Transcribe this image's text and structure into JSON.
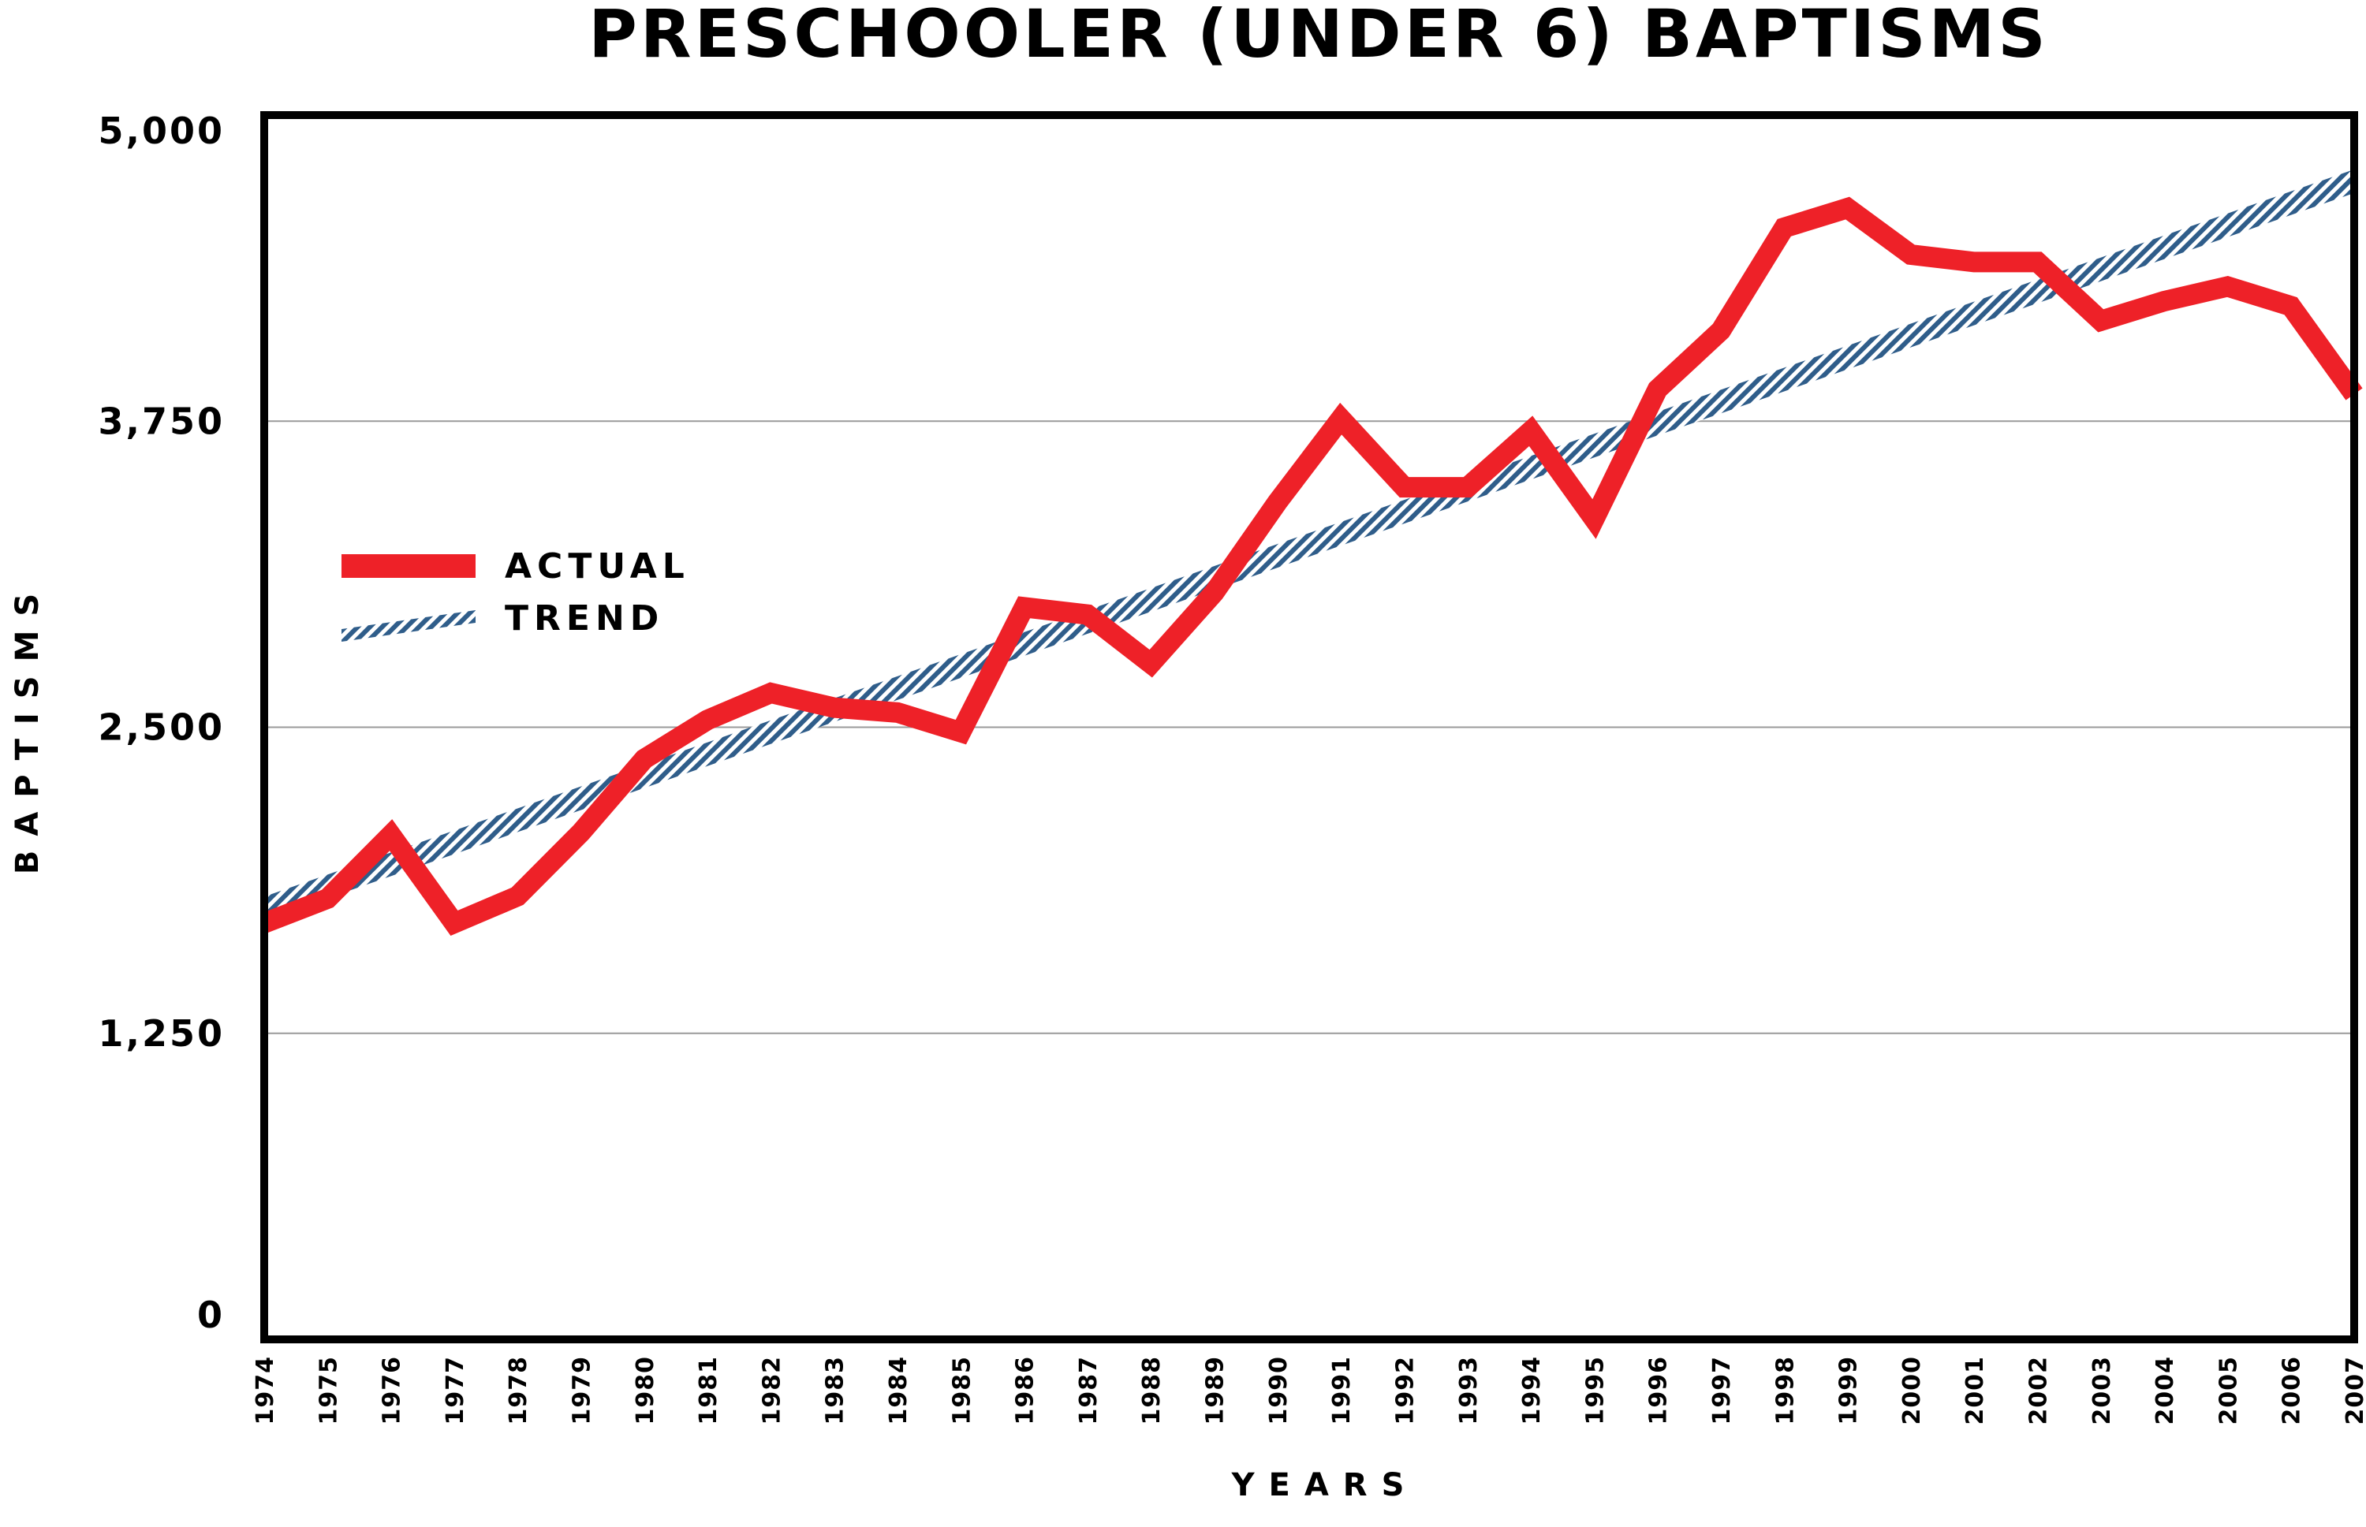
{
  "chart_data": {
    "type": "line",
    "title": "PRESCHOOLER (UNDER 6) BAPTISMS",
    "xlabel": "YEARS",
    "ylabel": "BAPTISMS",
    "ylim": [
      0,
      5000
    ],
    "yticks": [
      "0",
      "1,250",
      "2,500",
      "3,750",
      "5,000"
    ],
    "ytick_values": [
      0,
      1250,
      2500,
      3750,
      5000
    ],
    "grid": true,
    "legend_position": "left",
    "x": [
      "1974",
      "1975",
      "1976",
      "1977",
      "1978",
      "1979",
      "1980",
      "1981",
      "1982",
      "1983",
      "1984",
      "1985",
      "1986",
      "1987",
      "1988",
      "1989",
      "1990",
      "1991",
      "1992",
      "1993",
      "1994",
      "1995",
      "1996",
      "1997",
      "1998",
      "1999",
      "2000",
      "2001",
      "2002",
      "2003",
      "2004",
      "2005",
      "2006",
      "2007"
    ],
    "series": [
      {
        "name": "ACTUAL",
        "color": "#ee2128",
        "values": [
          1700,
          1800,
          2060,
          1700,
          1810,
          2070,
          2370,
          2530,
          2640,
          2580,
          2560,
          2480,
          2990,
          2960,
          2760,
          3050,
          3420,
          3760,
          3480,
          3480,
          3710,
          3350,
          3880,
          4120,
          4540,
          4620,
          4430,
          4400,
          4400,
          4160,
          4240,
          4300,
          4220,
          3860
        ]
      },
      {
        "name": "TREND",
        "color": "#2f5d8a",
        "values": [
          1760,
          1850,
          1940,
          2030,
          2120,
          2210,
          2300,
          2390,
          2480,
          2570,
          2660,
          2750,
          2840,
          2930,
          3020,
          3110,
          3200,
          3290,
          3380,
          3470,
          3560,
          3650,
          3740,
          3830,
          3920,
          4010,
          4100,
          4190,
          4280,
          4370,
          4460,
          4550,
          4640,
          4730
        ]
      }
    ]
  }
}
